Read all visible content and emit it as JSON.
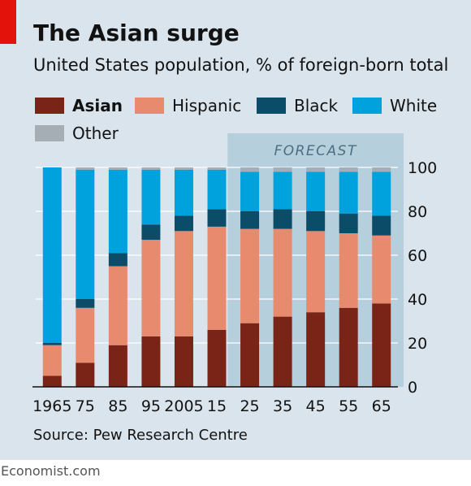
{
  "title": "The Asian surge",
  "subtitle": "United States population, % of foreign-born total",
  "source": "Source: Pew Research Centre",
  "footer": "Economist.com",
  "forecast_label": "FORECAST",
  "colors": {
    "Asian": "#7a2417",
    "Hispanic": "#e88a6e",
    "Black": "#0b4c68",
    "White": "#00a2dd",
    "Other": "#a5aeb5",
    "background": "#d9e4ec",
    "forecast_band": "#b6cfdc",
    "brand_red": "#e3120b"
  },
  "chart_data": {
    "type": "bar",
    "stacked": true,
    "title": "The Asian surge",
    "subtitle": "United States population, % of foreign-born total",
    "xlabel": "",
    "ylabel": "",
    "ylim": [
      0,
      100
    ],
    "yticks": [
      0,
      20,
      40,
      60,
      80,
      100
    ],
    "y_axis_side": "right",
    "grid": true,
    "legend_position": "top",
    "categories": [
      "1965",
      "75",
      "85",
      "95",
      "2005",
      "15",
      "25",
      "35",
      "45",
      "55",
      "65"
    ],
    "forecast_from": "25",
    "series": [
      {
        "name": "Asian",
        "values": [
          5,
          11,
          19,
          23,
          23,
          26,
          29,
          32,
          34,
          36,
          38
        ]
      },
      {
        "name": "Hispanic",
        "values": [
          14,
          25,
          36,
          44,
          48,
          47,
          43,
          40,
          37,
          34,
          31
        ]
      },
      {
        "name": "Black",
        "values": [
          1,
          4,
          6,
          7,
          7,
          8,
          8,
          9,
          9,
          9,
          9
        ]
      },
      {
        "name": "White",
        "values": [
          80,
          59,
          38,
          25,
          21,
          18,
          18,
          17,
          18,
          19,
          20
        ]
      },
      {
        "name": "Other",
        "values": [
          0,
          1,
          1,
          1,
          1,
          1,
          2,
          2,
          2,
          2,
          2
        ]
      }
    ]
  }
}
